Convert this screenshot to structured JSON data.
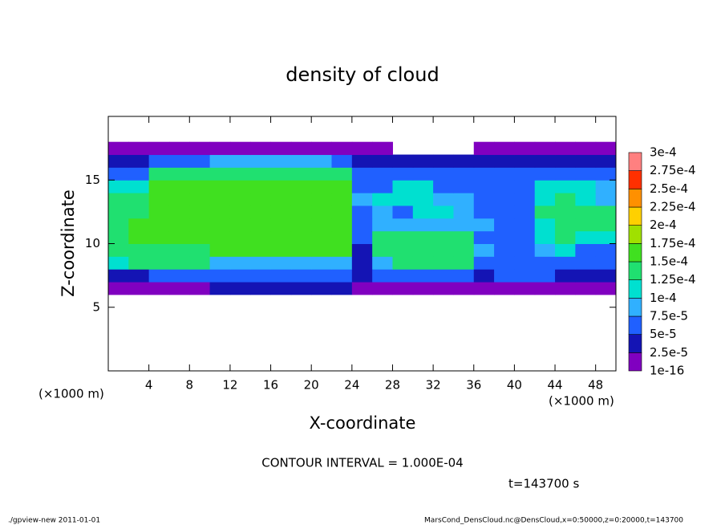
{
  "chart_data": {
    "type": "heatmap",
    "title": "density of cloud",
    "x_label": "X-coordinate",
    "y_label": "Z-coordinate",
    "x_unit": "(×1000 m)",
    "y_unit": "(×1000 m)",
    "contour_note": "CONTOUR INTERVAL = 1.000E-04",
    "time_note": "t=143700 s",
    "footer_left": "./gpview-new  2011-01-01",
    "footer_right": "MarsCond_DensCloud.nc@DensCloud,x=0:50000,z=0:20000,t=143700",
    "xlim": [
      0,
      50
    ],
    "ylim": [
      0,
      20
    ],
    "xticks": [
      4,
      8,
      12,
      16,
      20,
      24,
      28,
      32,
      36,
      40,
      44,
      48
    ],
    "yticks": [
      5,
      10,
      15
    ],
    "x_edges": [
      0,
      2,
      4,
      6,
      8,
      10,
      12,
      14,
      16,
      18,
      20,
      22,
      24,
      26,
      28,
      30,
      32,
      34,
      36,
      38,
      40,
      42,
      44,
      46,
      48,
      50
    ],
    "z_edges": [
      6,
      7,
      8,
      9,
      10,
      11,
      12,
      13,
      14,
      15,
      16,
      17,
      18
    ],
    "levels": [
      {
        "value": 1e-16,
        "label": "1e-16"
      },
      {
        "value": 2.5e-05,
        "label": "2.5e-5"
      },
      {
        "value": 5e-05,
        "label": "5e-5"
      },
      {
        "value": 7.5e-05,
        "label": "7.5e-5"
      },
      {
        "value": 0.0001,
        "label": "1e-4"
      },
      {
        "value": 0.000125,
        "label": "1.25e-4"
      },
      {
        "value": 0.00015,
        "label": "1.5e-4"
      },
      {
        "value": 0.000175,
        "label": "1.75e-4"
      },
      {
        "value": 0.0002,
        "label": "2e-4"
      },
      {
        "value": 0.000225,
        "label": "2.25e-4"
      },
      {
        "value": 0.00025,
        "label": "2.5e-4"
      },
      {
        "value": 0.000275,
        "label": "2.75e-4"
      },
      {
        "value": 0.0003,
        "label": "3e-4"
      }
    ],
    "colors": [
      "#8000c0",
      "#1414b4",
      "#2060ff",
      "#30b0ff",
      "#00e0d0",
      "#20e070",
      "#40e020",
      "#a0e000",
      "#ffd000",
      "#ff9000",
      "#ff3000",
      "#ff8080"
    ],
    "values": [
      [
        1e-05,
        1e-05,
        1e-05,
        1e-05,
        1e-05,
        3.5e-05,
        3.5e-05,
        3.5e-05,
        3.5e-05,
        3.5e-05,
        3.5e-05,
        3.5e-05,
        1e-05,
        1e-05,
        1e-05,
        1e-05,
        1e-05,
        1e-05,
        1e-05,
        1e-05,
        1e-05,
        1e-05,
        1e-05,
        1e-05,
        1e-05
      ],
      [
        3.5e-05,
        3.5e-05,
        6e-05,
        6e-05,
        6e-05,
        6e-05,
        6e-05,
        6e-05,
        6e-05,
        6e-05,
        6e-05,
        6e-05,
        3.5e-05,
        6e-05,
        6e-05,
        6e-05,
        6e-05,
        6e-05,
        3.5e-05,
        6e-05,
        6e-05,
        6e-05,
        3.5e-05,
        3.5e-05,
        3.5e-05
      ],
      [
        0.00011,
        0.00014,
        0.00014,
        0.00014,
        0.00014,
        8.5e-05,
        8.5e-05,
        8.5e-05,
        8.5e-05,
        8.5e-05,
        8.5e-05,
        8.5e-05,
        3.5e-05,
        8.5e-05,
        0.00014,
        0.00014,
        0.00014,
        0.00014,
        6e-05,
        6e-05,
        6e-05,
        6e-05,
        6e-05,
        6e-05,
        6e-05
      ],
      [
        0.00014,
        0.00014,
        0.00014,
        0.00014,
        0.00014,
        0.00016,
        0.00016,
        0.00016,
        0.00016,
        0.00016,
        0.00016,
        0.00016,
        3.5e-05,
        0.00014,
        0.00014,
        0.00014,
        0.00014,
        0.00014,
        8.5e-05,
        6e-05,
        6e-05,
        8.5e-05,
        0.00011,
        6e-05,
        6e-05
      ],
      [
        0.00014,
        0.00016,
        0.00016,
        0.00016,
        0.00016,
        0.00016,
        0.00016,
        0.00016,
        0.00016,
        0.00016,
        0.00016,
        0.00016,
        6e-05,
        0.00014,
        0.00014,
        0.00014,
        0.00014,
        0.00014,
        6e-05,
        6e-05,
        6e-05,
        0.00011,
        0.00014,
        0.00011,
        0.00011
      ],
      [
        0.00014,
        0.00016,
        0.00016,
        0.00016,
        0.00016,
        0.00016,
        0.00016,
        0.00016,
        0.00016,
        0.00016,
        0.00016,
        0.00016,
        6e-05,
        8.5e-05,
        8.5e-05,
        8.5e-05,
        8.5e-05,
        8.5e-05,
        8.5e-05,
        6e-05,
        6e-05,
        0.00011,
        0.00014,
        0.00014,
        0.00014
      ],
      [
        0.00014,
        0.00014,
        0.00016,
        0.00016,
        0.00016,
        0.00016,
        0.00016,
        0.00016,
        0.00016,
        0.00016,
        0.00016,
        0.00016,
        6e-05,
        8.5e-05,
        6e-05,
        0.00011,
        0.00011,
        8.5e-05,
        6e-05,
        6e-05,
        6e-05,
        0.00014,
        0.00014,
        0.00014,
        0.00014
      ],
      [
        0.00014,
        0.00014,
        0.00016,
        0.00016,
        0.00016,
        0.00016,
        0.00016,
        0.00016,
        0.00016,
        0.00016,
        0.00016,
        0.00016,
        8.5e-05,
        0.00011,
        0.00011,
        0.00011,
        8.5e-05,
        8.5e-05,
        6e-05,
        6e-05,
        6e-05,
        0.00011,
        0.00014,
        0.00011,
        8.5e-05
      ],
      [
        0.00011,
        0.00011,
        0.00016,
        0.00016,
        0.00016,
        0.00016,
        0.00016,
        0.00016,
        0.00016,
        0.00016,
        0.00016,
        0.00016,
        6e-05,
        6e-05,
        0.00011,
        0.00011,
        6e-05,
        6e-05,
        6e-05,
        6e-05,
        6e-05,
        0.00011,
        0.00011,
        0.00011,
        8.5e-05
      ],
      [
        6e-05,
        6e-05,
        0.00014,
        0.00014,
        0.00014,
        0.00014,
        0.00014,
        0.00014,
        0.00014,
        0.00014,
        0.00014,
        0.00014,
        6e-05,
        6e-05,
        6e-05,
        6e-05,
        6e-05,
        6e-05,
        6e-05,
        6e-05,
        6e-05,
        6e-05,
        6e-05,
        6e-05,
        6e-05
      ],
      [
        3.5e-05,
        3.5e-05,
        6e-05,
        6e-05,
        6e-05,
        8.5e-05,
        8.5e-05,
        8.5e-05,
        8.5e-05,
        8.5e-05,
        8.5e-05,
        6e-05,
        3.5e-05,
        3.5e-05,
        3.5e-05,
        3.5e-05,
        3.5e-05,
        3.5e-05,
        3.5e-05,
        3.5e-05,
        3.5e-05,
        3.5e-05,
        3.5e-05,
        3.5e-05,
        3.5e-05
      ],
      [
        1e-05,
        1e-05,
        1e-05,
        1e-05,
        1e-05,
        1e-05,
        1e-05,
        1e-05,
        1e-05,
        1e-05,
        1e-05,
        1e-05,
        1e-05,
        1e-05,
        null,
        null,
        null,
        null,
        1e-05,
        1e-05,
        1e-05,
        1e-05,
        1e-05,
        1e-05,
        1e-05
      ]
    ]
  }
}
